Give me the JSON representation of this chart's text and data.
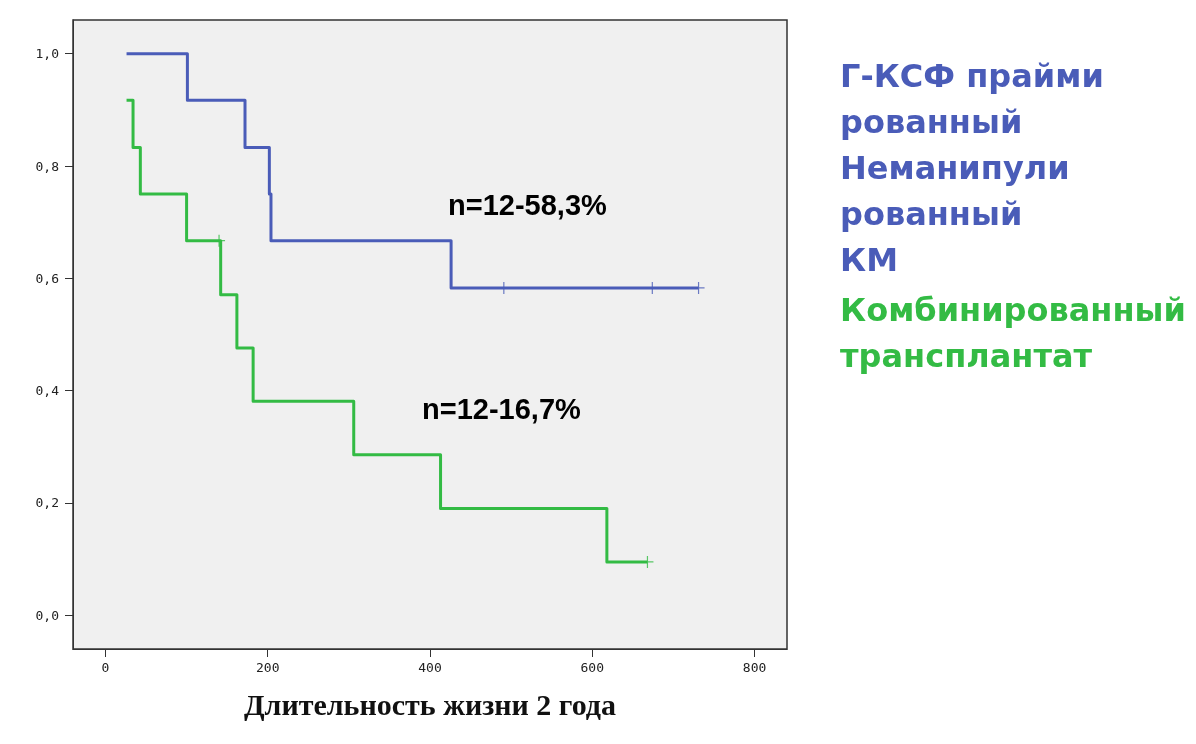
{
  "chart_data": {
    "type": "step",
    "xlabel": "Длительность жизни 2 года",
    "xlim": [
      -40,
      840
    ],
    "xticks": [
      0,
      200,
      400,
      600,
      800
    ],
    "ylim": [
      -0.06,
      1.06
    ],
    "yticks": [
      {
        "value": 0,
        "label": "0,0"
      },
      {
        "value": 0.2,
        "label": "0,2"
      },
      {
        "value": 0.4,
        "label": "0,4"
      },
      {
        "value": 0.6,
        "label": "0,6"
      },
      {
        "value": 0.8,
        "label": "0,8"
      },
      {
        "value": 1,
        "label": "1,0"
      }
    ],
    "grid": false,
    "legend": "right",
    "marker": "none",
    "line_style": "solid",
    "series": [
      {
        "name": "Г-КСФ прайми\nрованный\nНеманипули\nрованный\nКМ",
        "color": "#4a5cb8",
        "x": [
          26,
          101,
          172,
          202,
          204,
          426,
          731
        ],
        "values": [
          1,
          0.917,
          0.833,
          0.75,
          0.667,
          0.583,
          0.583
        ]
      },
      {
        "name": "Комбинированный\nтрансплантат",
        "color": "#33bb44",
        "x": [
          26,
          34,
          43,
          100,
          142,
          162,
          182,
          306,
          413,
          618,
          668
        ],
        "values": [
          0.917,
          0.833,
          0.75,
          0.667,
          0.571,
          0.476,
          0.381,
          0.286,
          0.19,
          0.095,
          0.095
        ]
      },
      {
        "type": "scatter",
        "marker": "cross",
        "color": "#4a5cb8",
        "x": [
          491,
          674,
          731
        ],
        "values": [
          0.583,
          0.583,
          0.583
        ]
      },
      {
        "type": "scatter",
        "marker": "cross",
        "color": "#33bb44",
        "x": [
          140,
          668
        ],
        "values": [
          0.667,
          0.095
        ]
      }
    ],
    "annotations": [
      "n=12-58,3%",
      "n=12-16,7%"
    ]
  }
}
